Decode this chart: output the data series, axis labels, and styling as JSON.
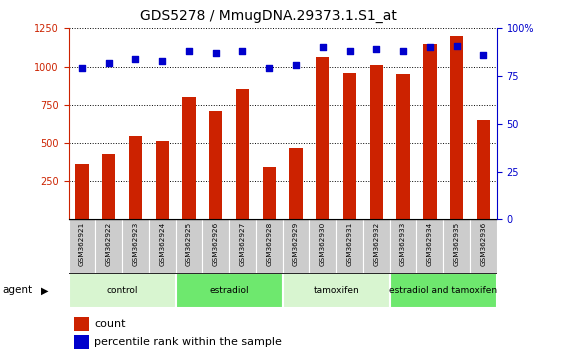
{
  "title": "GDS5278 / MmugDNA.29373.1.S1_at",
  "samples": [
    "GSM362921",
    "GSM362922",
    "GSM362923",
    "GSM362924",
    "GSM362925",
    "GSM362926",
    "GSM362927",
    "GSM362928",
    "GSM362929",
    "GSM362930",
    "GSM362931",
    "GSM362932",
    "GSM362933",
    "GSM362934",
    "GSM362935",
    "GSM362936"
  ],
  "counts": [
    360,
    430,
    545,
    510,
    800,
    710,
    855,
    340,
    470,
    1060,
    960,
    1010,
    950,
    1150,
    1200,
    650
  ],
  "percentiles": [
    79,
    82,
    84,
    83,
    88,
    87,
    88,
    79,
    81,
    90,
    88,
    89,
    88,
    90,
    91,
    86
  ],
  "groups": [
    {
      "label": "control",
      "start": 0,
      "end": 4,
      "color": "#d8f5d0"
    },
    {
      "label": "estradiol",
      "start": 4,
      "end": 8,
      "color": "#6ee86e"
    },
    {
      "label": "tamoxifen",
      "start": 8,
      "end": 12,
      "color": "#d8f5d0"
    },
    {
      "label": "estradiol and tamoxifen",
      "start": 12,
      "end": 16,
      "color": "#6ee86e"
    }
  ],
  "bar_color": "#cc2200",
  "dot_color": "#0000cc",
  "left_ylim": [
    0,
    1250
  ],
  "left_yticks": [
    250,
    500,
    750,
    1000,
    1250
  ],
  "right_ylim": [
    0,
    100
  ],
  "right_yticks": [
    0,
    25,
    50,
    75,
    100
  ],
  "right_yticklabels": [
    "0",
    "25",
    "50",
    "75",
    "100%"
  ],
  "agent_label": "agent",
  "legend_count_label": "count",
  "legend_pct_label": "percentile rank within the sample",
  "bar_color_legend": "#cc2200",
  "dot_color_legend": "#0000cc",
  "tick_label_color_left": "#cc2200",
  "tick_label_color_right": "#0000cc",
  "title_fontsize": 10,
  "legend_fontsize": 8
}
